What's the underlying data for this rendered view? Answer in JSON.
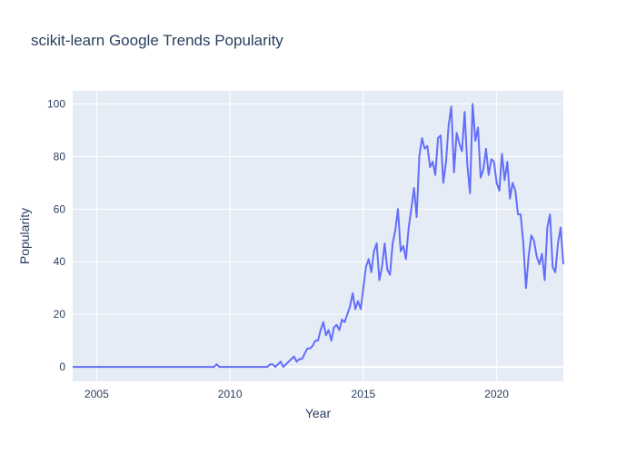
{
  "chart_data": {
    "type": "line",
    "title": "scikit-learn Google Trends Popularity",
    "xlabel": "Year",
    "ylabel": "Popularity",
    "xlim": [
      2004.1,
      2022.5
    ],
    "ylim": [
      -5.5,
      105
    ],
    "x_ticks": [
      "2005",
      "2010",
      "2015",
      "2020"
    ],
    "y_ticks": [
      "0",
      "20",
      "40",
      "60",
      "80",
      "100"
    ],
    "grid": true,
    "line_color": "#636efa",
    "plot_bg": "#e5ecf6",
    "series": [
      {
        "x": [
          2004.0,
          2009.4,
          2009.5,
          2009.6,
          2011.4,
          2011.5,
          2011.6,
          2011.7,
          2011.8,
          2011.9,
          2012.0,
          2012.1,
          2012.2,
          2012.3,
          2012.4,
          2012.5,
          2012.6,
          2012.7,
          2012.8,
          2012.9,
          2013.0,
          2013.1,
          2013.2,
          2013.3,
          2013.4,
          2013.5,
          2013.6,
          2013.7,
          2013.8,
          2013.9,
          2014.0,
          2014.1,
          2014.2,
          2014.3,
          2014.4,
          2014.5,
          2014.6,
          2014.7,
          2014.8,
          2014.9,
          2015.0,
          2015.1,
          2015.2,
          2015.3,
          2015.4,
          2015.5,
          2015.6,
          2015.7,
          2015.8,
          2015.9,
          2016.0,
          2016.1,
          2016.2,
          2016.3,
          2016.4,
          2016.5,
          2016.6,
          2016.7,
          2016.8,
          2016.9,
          2017.0,
          2017.1,
          2017.2,
          2017.3,
          2017.4,
          2017.5,
          2017.6,
          2017.7,
          2017.8,
          2017.9,
          2018.0,
          2018.1,
          2018.2,
          2018.3,
          2018.4,
          2018.5,
          2018.6,
          2018.7,
          2018.8,
          2018.9,
          2019.0,
          2019.1,
          2019.2,
          2019.3,
          2019.4,
          2019.5,
          2019.6,
          2019.7,
          2019.8,
          2019.9,
          2020.0,
          2020.1,
          2020.2,
          2020.3,
          2020.4,
          2020.5,
          2020.6,
          2020.7,
          2020.8,
          2020.9,
          2021.0,
          2021.1,
          2021.2,
          2021.3,
          2021.4,
          2021.5,
          2021.6,
          2021.7,
          2021.8,
          2021.9,
          2022.0,
          2022.1,
          2022.2,
          2022.3,
          2022.4,
          2022.5
        ],
        "y": [
          0,
          0,
          1,
          0,
          0,
          1,
          1,
          0,
          1,
          2,
          0,
          1,
          2,
          3,
          4,
          2,
          3,
          3,
          5,
          7,
          7,
          8,
          10,
          10,
          14,
          17,
          12,
          14,
          10,
          15,
          16,
          14,
          18,
          17,
          20,
          23,
          28,
          22,
          25,
          22,
          30,
          38,
          41,
          36,
          44,
          47,
          33,
          38,
          47,
          37,
          35,
          47,
          52,
          60,
          44,
          46,
          41,
          53,
          60,
          68,
          57,
          80,
          87,
          83,
          84,
          76,
          78,
          73,
          87,
          88,
          70,
          78,
          92,
          99,
          74,
          89,
          85,
          82,
          97,
          77,
          66,
          100,
          86,
          91,
          72,
          75,
          83,
          73,
          79,
          78,
          70,
          67,
          81,
          71,
          78,
          64,
          70,
          67,
          58,
          58,
          47,
          30,
          42,
          50,
          48,
          42,
          39,
          43,
          33,
          53,
          58,
          38,
          36,
          47,
          53,
          39
        ]
      }
    ]
  }
}
